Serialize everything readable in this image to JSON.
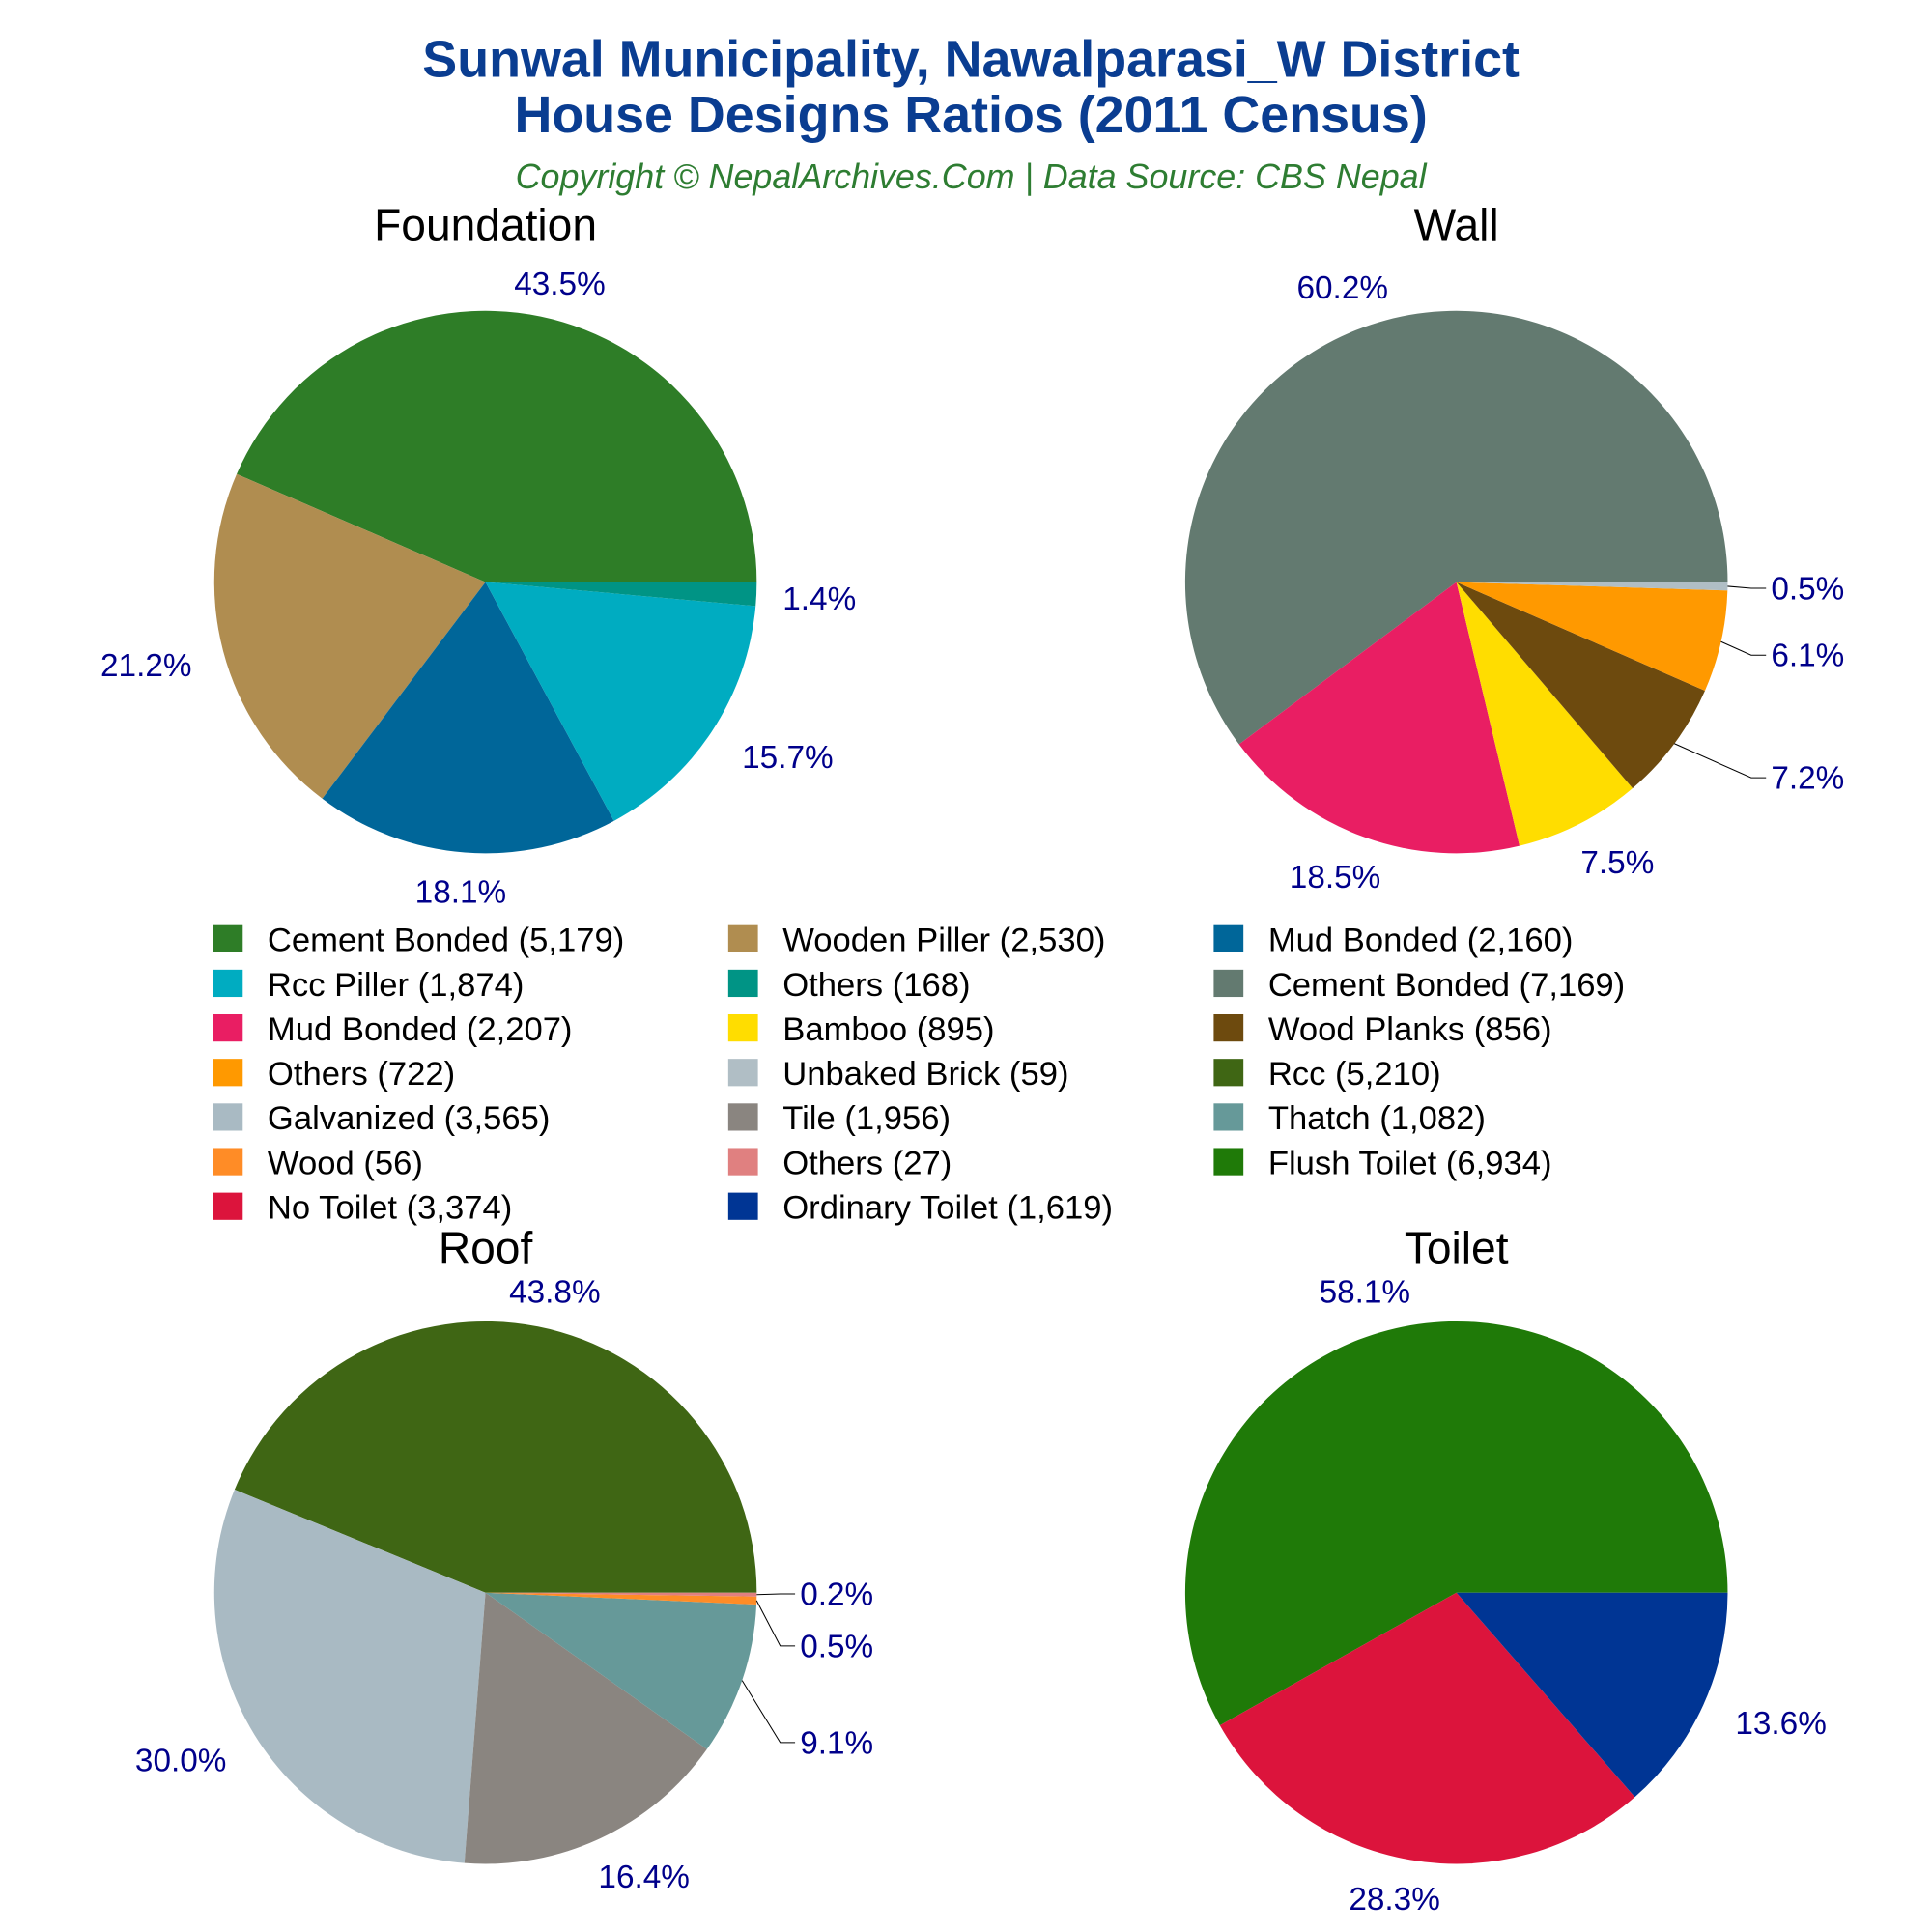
{
  "title_line1": "Sunwal Municipality, Nawalparasi_W District",
  "title_line2": "House Designs Ratios (2011 Census)",
  "subtitle": "Copyright © NepalArchives.Com | Data Source: CBS Nepal",
  "colors": {
    "title": "#0a3d91",
    "subtitle": "#2e7d32",
    "pct_label": "#00008b"
  },
  "chart_data": [
    {
      "type": "pie",
      "title": "Foundation",
      "start": "3 o'clock, counterclockwise",
      "slices": [
        {
          "label": "Cement Bonded",
          "value": 5179,
          "pct": "43.5%",
          "color": "#2e7d27"
        },
        {
          "label": "Wooden Piller",
          "value": 2530,
          "pct": "21.2%",
          "color": "#b08d50"
        },
        {
          "label": "Mud Bonded",
          "value": 2160,
          "pct": "18.1%",
          "color": "#006699"
        },
        {
          "label": "Rcc Piller",
          "value": 1874,
          "pct": "15.7%",
          "color": "#00acc1"
        },
        {
          "label": "Others",
          "value": 168,
          "pct": "1.4%",
          "color": "#009485"
        }
      ]
    },
    {
      "type": "pie",
      "title": "Wall",
      "start": "3 o'clock, counterclockwise",
      "slices": [
        {
          "label": "Cement Bonded",
          "value": 7169,
          "pct": "60.2%",
          "color": "#637a70"
        },
        {
          "label": "Mud Bonded",
          "value": 2207,
          "pct": "18.5%",
          "color": "#e91e63"
        },
        {
          "label": "Bamboo",
          "value": 895,
          "pct": "7.5%",
          "color": "#ffdd00"
        },
        {
          "label": "Wood Planks",
          "value": 856,
          "pct": "7.2%",
          "color": "#6d4a0e"
        },
        {
          "label": "Others",
          "value": 722,
          "pct": "6.1%",
          "color": "#ff9900"
        },
        {
          "label": "Unbaked Brick",
          "value": 59,
          "pct": "0.5%",
          "color": "#b0bec5"
        }
      ]
    },
    {
      "type": "pie",
      "title": "Roof",
      "start": "3 o'clock, counterclockwise",
      "slices": [
        {
          "label": "Rcc",
          "value": 5210,
          "pct": "43.8%",
          "color": "#3f6614"
        },
        {
          "label": "Galvanized",
          "value": 3565,
          "pct": "30.0%",
          "color": "#a9bac3"
        },
        {
          "label": "Tile",
          "value": 1956,
          "pct": "16.4%",
          "color": "#8a8580"
        },
        {
          "label": "Thatch",
          "value": 1082,
          "pct": "9.1%",
          "color": "#669999"
        },
        {
          "label": "Wood",
          "value": 56,
          "pct": "0.5%",
          "color": "#ff8c26"
        },
        {
          "label": "Others",
          "value": 27,
          "pct": "0.2%",
          "color": "#e08080"
        }
      ]
    },
    {
      "type": "pie",
      "title": "Toilet",
      "start": "3 o'clock, counterclockwise",
      "slices": [
        {
          "label": "Flush Toilet",
          "value": 6934,
          "pct": "58.1%",
          "color": "#1f7a08"
        },
        {
          "label": "No Toilet",
          "value": 3374,
          "pct": "28.3%",
          "color": "#dc143c"
        },
        {
          "label": "Ordinary Toilet",
          "value": 1619,
          "pct": "13.6%",
          "color": "#003594"
        }
      ]
    }
  ],
  "legend": [
    {
      "text": "Cement Bonded (5,179)",
      "color": "#2e7d27"
    },
    {
      "text": "Wooden Piller (2,530)",
      "color": "#b08d50"
    },
    {
      "text": "Mud Bonded (2,160)",
      "color": "#006699"
    },
    {
      "text": "Rcc Piller (1,874)",
      "color": "#00acc1"
    },
    {
      "text": "Others (168)",
      "color": "#009485"
    },
    {
      "text": "Cement Bonded (7,169)",
      "color": "#637a70"
    },
    {
      "text": "Mud Bonded (2,207)",
      "color": "#e91e63"
    },
    {
      "text": "Bamboo (895)",
      "color": "#ffdd00"
    },
    {
      "text": "Wood Planks (856)",
      "color": "#6d4a0e"
    },
    {
      "text": "Others (722)",
      "color": "#ff9900"
    },
    {
      "text": "Unbaked Brick (59)",
      "color": "#b0bec5"
    },
    {
      "text": "Rcc (5,210)",
      "color": "#3f6614"
    },
    {
      "text": "Galvanized (3,565)",
      "color": "#a9bac3"
    },
    {
      "text": "Tile (1,956)",
      "color": "#8a8580"
    },
    {
      "text": "Thatch (1,082)",
      "color": "#669999"
    },
    {
      "text": "Wood (56)",
      "color": "#ff8c26"
    },
    {
      "text": "Others (27)",
      "color": "#e08080"
    },
    {
      "text": "Flush Toilet (6,934)",
      "color": "#1f7a08"
    },
    {
      "text": "No Toilet (3,374)",
      "color": "#dc143c"
    },
    {
      "text": "Ordinary Toilet (1,619)",
      "color": "#003594"
    }
  ]
}
